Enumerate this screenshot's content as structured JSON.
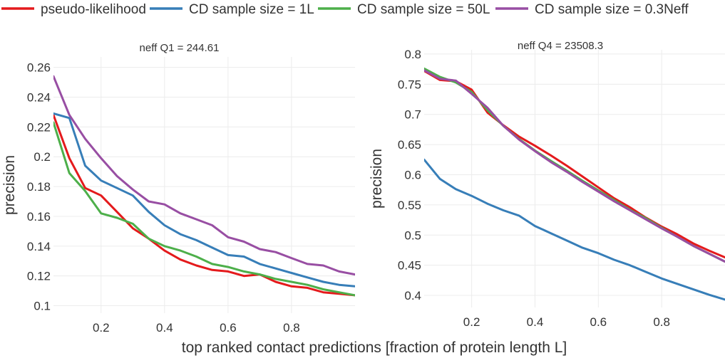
{
  "chart_data": {
    "type": "line",
    "legend": {
      "placement": "top",
      "entries": [
        {
          "name": "pseudo-likelihood",
          "color": "#e41a1c"
        },
        {
          "name": "CD sample size = 1L",
          "color": "#377eb8"
        },
        {
          "name": "CD sample size = 50L",
          "color": "#4daf4a"
        },
        {
          "name": "CD sample size = 0.3Neff",
          "color": "#984ea3"
        }
      ]
    },
    "xlabel": "top ranked contact predictions [fraction of protein length L]",
    "grid": true,
    "panels": [
      {
        "title": "neff  Q1 = 244.61",
        "ylabel": "precision",
        "xlim": [
          0.05,
          1.0
        ],
        "ylim": [
          0.095,
          0.267
        ],
        "xticks": [
          0.2,
          0.4,
          0.6,
          0.8
        ],
        "xtick_labels": [
          "0.2",
          "0.4",
          "0.6",
          "0.8"
        ],
        "yticks": [
          0.1,
          0.12,
          0.14,
          0.16,
          0.18,
          0.2,
          0.22,
          0.24,
          0.26
        ],
        "ytick_labels": [
          "0.1",
          "0.12",
          "0.14",
          "0.16",
          "0.18",
          "0.2",
          "0.22",
          "0.24",
          "0.26"
        ],
        "x": [
          0.05,
          0.1,
          0.15,
          0.2,
          0.25,
          0.3,
          0.35,
          0.4,
          0.45,
          0.5,
          0.55,
          0.6,
          0.65,
          0.7,
          0.75,
          0.8,
          0.85,
          0.9,
          0.95,
          1.0
        ],
        "series": [
          {
            "name": "pseudo-likelihood",
            "values": [
              0.228,
              0.199,
              0.179,
              0.174,
              0.163,
              0.152,
              0.145,
              0.137,
              0.131,
              0.127,
              0.124,
              0.123,
              0.12,
              0.121,
              0.116,
              0.113,
              0.112,
              0.109,
              0.108,
              0.107
            ]
          },
          {
            "name": "CD sample size = 1L",
            "values": [
              0.229,
              0.226,
              0.194,
              0.184,
              0.179,
              0.174,
              0.163,
              0.154,
              0.148,
              0.144,
              0.139,
              0.134,
              0.133,
              0.128,
              0.125,
              0.122,
              0.119,
              0.116,
              0.114,
              0.113
            ]
          },
          {
            "name": "CD sample size = 50L",
            "values": [
              0.223,
              0.189,
              0.177,
              0.162,
              0.159,
              0.155,
              0.145,
              0.14,
              0.137,
              0.133,
              0.128,
              0.126,
              0.123,
              0.121,
              0.118,
              0.116,
              0.114,
              0.111,
              0.109,
              0.107
            ]
          },
          {
            "name": "CD sample size = 0.3Neff",
            "values": [
              0.254,
              0.228,
              0.212,
              0.199,
              0.187,
              0.178,
              0.17,
              0.168,
              0.162,
              0.158,
              0.154,
              0.146,
              0.143,
              0.138,
              0.136,
              0.132,
              0.128,
              0.127,
              0.123,
              0.121
            ]
          }
        ]
      },
      {
        "title": "neff  Q4 = 23508.3",
        "ylabel": "precision",
        "xlim": [
          0.05,
          1.0
        ],
        "ylim": [
          0.38,
          0.807
        ],
        "xticks": [
          0.2,
          0.4,
          0.6,
          0.8
        ],
        "xtick_labels": [
          "0.2",
          "0.4",
          "0.6",
          "0.8"
        ],
        "yticks": [
          0.4,
          0.45,
          0.5,
          0.55,
          0.6,
          0.65,
          0.7,
          0.75,
          0.8
        ],
        "ytick_labels": [
          "0.4",
          "0.45",
          "0.5",
          "0.55",
          "0.6",
          "0.65",
          "0.7",
          "0.75",
          "0.8"
        ],
        "x": [
          0.05,
          0.1,
          0.15,
          0.2,
          0.25,
          0.3,
          0.35,
          0.4,
          0.45,
          0.5,
          0.55,
          0.6,
          0.65,
          0.7,
          0.75,
          0.8,
          0.85,
          0.9,
          0.95,
          1.0
        ],
        "series": [
          {
            "name": "pseudo-likelihood",
            "values": [
              0.772,
              0.757,
              0.755,
              0.741,
              0.703,
              0.682,
              0.663,
              0.648,
              0.632,
              0.615,
              0.597,
              0.579,
              0.561,
              0.546,
              0.529,
              0.514,
              0.501,
              0.486,
              0.474,
              0.463
            ]
          },
          {
            "name": "CD sample size = 1L",
            "values": [
              0.625,
              0.593,
              0.576,
              0.565,
              0.552,
              0.541,
              0.532,
              0.515,
              0.503,
              0.491,
              0.479,
              0.47,
              0.459,
              0.45,
              0.439,
              0.428,
              0.419,
              0.41,
              0.401,
              0.393
            ]
          },
          {
            "name": "CD sample size = 50L",
            "values": [
              0.776,
              0.762,
              0.753,
              0.737,
              0.707,
              0.681,
              0.659,
              0.64,
              0.623,
              0.607,
              0.59,
              0.574,
              0.558,
              0.542,
              0.528,
              0.512,
              0.497,
              0.482,
              0.469,
              0.456
            ]
          },
          {
            "name": "CD sample size = 0.3Neff",
            "values": [
              0.773,
              0.759,
              0.756,
              0.734,
              0.711,
              0.681,
              0.658,
              0.639,
              0.621,
              0.605,
              0.588,
              0.572,
              0.556,
              0.541,
              0.526,
              0.511,
              0.497,
              0.482,
              0.469,
              0.456
            ]
          }
        ]
      }
    ]
  }
}
